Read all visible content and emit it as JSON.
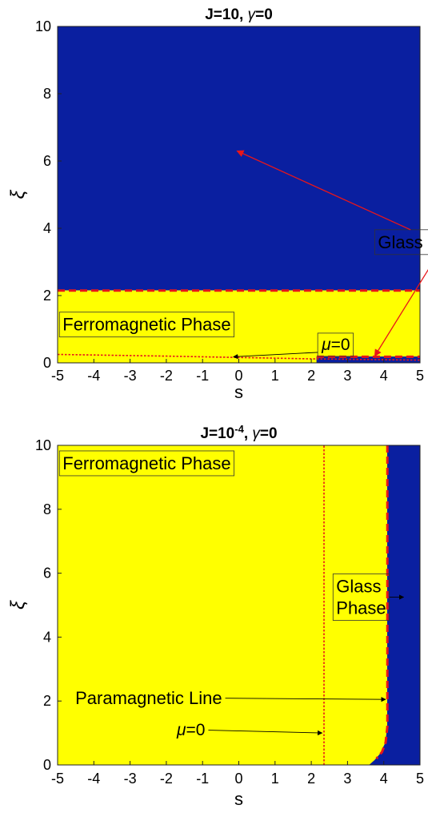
{
  "chart_data": [
    {
      "type": "heatmap",
      "title": "J=10, γ=0",
      "title_parts": {
        "prefix": "J=10, ",
        "gamma": "γ",
        "suffix": "=0"
      },
      "xlabel": "s",
      "ylabel": "ξ",
      "xlim": [
        -5,
        5
      ],
      "ylim": [
        0,
        10
      ],
      "xticks": [
        "-5",
        "-4",
        "-3",
        "-2",
        "-1",
        "0",
        "1",
        "2",
        "3",
        "4",
        "5"
      ],
      "yticks": [
        "0",
        "2",
        "4",
        "6",
        "8",
        "10"
      ],
      "colors": {
        "glass": "#0a1fa0",
        "ferro": "#ffff00",
        "boundary": "#e8161a"
      },
      "regions": [
        {
          "phase": "glass",
          "polygon": [
            [
              -5,
              2.15
            ],
            [
              5,
              2.15
            ],
            [
              5,
              10
            ],
            [
              -5,
              10
            ]
          ]
        },
        {
          "phase": "ferro",
          "polygon": [
            [
              -5,
              0
            ],
            [
              5,
              0
            ],
            [
              5,
              2.15
            ],
            [
              -5,
              2.15
            ]
          ]
        },
        {
          "phase": "glass",
          "polygon": [
            [
              2.15,
              0
            ],
            [
              5,
              0
            ],
            [
              5,
              0.18
            ],
            [
              2.15,
              0.18
            ]
          ]
        }
      ],
      "boundaries": [
        {
          "style": "dashed",
          "points": [
            [
              -5,
              2.15
            ],
            [
              5,
              2.15
            ]
          ]
        },
        {
          "style": "dashed",
          "points": [
            [
              2.15,
              0.18
            ],
            [
              5,
              0.18
            ]
          ]
        }
      ],
      "mu_zero_line": {
        "points": [
          [
            -5,
            0.25
          ],
          [
            -2,
            0.2
          ],
          [
            0,
            0.16
          ],
          [
            2,
            0.12
          ],
          [
            5,
            0.08
          ]
        ]
      },
      "annotations": [
        {
          "text": "Ferromagnetic Phase",
          "box": true,
          "anchor": [
            -4.95,
            1.15
          ]
        },
        {
          "text_parts": {
            "mu": "μ",
            "suffix": "=0"
          },
          "box": true,
          "anchor": [
            2.2,
            0.55
          ],
          "arrow_to": [
            -0.15,
            0.18
          ]
        },
        {
          "text": "Glass Phases",
          "color": "#e8161a",
          "box": true,
          "anchor": [
            3.75,
            3.6
          ],
          "arrows_to": [
            [
              -0.05,
              6.3
            ],
            [
              3.75,
              0.2
            ]
          ]
        }
      ]
    },
    {
      "type": "heatmap",
      "title_parts": {
        "prefix": "J=10",
        "sup": "-4",
        "mid": ", ",
        "gamma": "γ",
        "suffix": "=0"
      },
      "xlabel": "s",
      "ylabel": "ξ",
      "xlim": [
        -5,
        5
      ],
      "ylim": [
        0,
        10
      ],
      "xticks": [
        "-5",
        "-4",
        "-3",
        "-2",
        "-1",
        "0",
        "1",
        "2",
        "3",
        "4",
        "5"
      ],
      "yticks": [
        "0",
        "2",
        "4",
        "6",
        "8",
        "10"
      ],
      "colors": {
        "glass": "#0a1fa0",
        "ferro": "#ffff00",
        "boundary": "#e8161a"
      },
      "regions": [
        {
          "phase": "ferro",
          "polygon": [
            [
              -5,
              0
            ],
            [
              5,
              0
            ],
            [
              5,
              10
            ],
            [
              -5,
              10
            ]
          ]
        },
        {
          "phase": "glass",
          "polygon": [
            [
              4.1,
              10
            ],
            [
              5,
              10
            ],
            [
              5,
              0
            ],
            [
              3.6,
              0
            ],
            [
              3.75,
              0.15
            ],
            [
              3.9,
              0.35
            ],
            [
              4.05,
              0.7
            ],
            [
              4.1,
              1.2
            ],
            [
              4.1,
              10
            ]
          ]
        }
      ],
      "boundaries": [
        {
          "style": "dashed",
          "points": [
            [
              4.1,
              10
            ],
            [
              4.1,
              1.2
            ],
            [
              4.05,
              0.7
            ],
            [
              3.95,
              0.4
            ],
            [
              3.8,
              0.2
            ]
          ]
        }
      ],
      "mu_zero_line": {
        "points": [
          [
            2.35,
            0
          ],
          [
            2.35,
            10
          ]
        ]
      },
      "annotations": [
        {
          "text": "Ferromagnetic Phase",
          "box": true,
          "anchor": [
            -4.95,
            9.45
          ]
        },
        {
          "text_lines": [
            "Glass",
            "Phase"
          ],
          "box": true,
          "anchor": [
            2.6,
            5.25
          ],
          "arrow_to": [
            4.55,
            5.25
          ]
        },
        {
          "text": "Paramagnetic Line",
          "box": false,
          "anchor": [
            -4.6,
            2.1
          ],
          "arrow_to": [
            4.05,
            2.05
          ]
        },
        {
          "text_parts": {
            "mu": "μ",
            "suffix": "=0"
          },
          "box": false,
          "anchor": [
            -1.8,
            1.1
          ],
          "arrow_to": [
            2.3,
            1.0
          ]
        }
      ]
    }
  ]
}
